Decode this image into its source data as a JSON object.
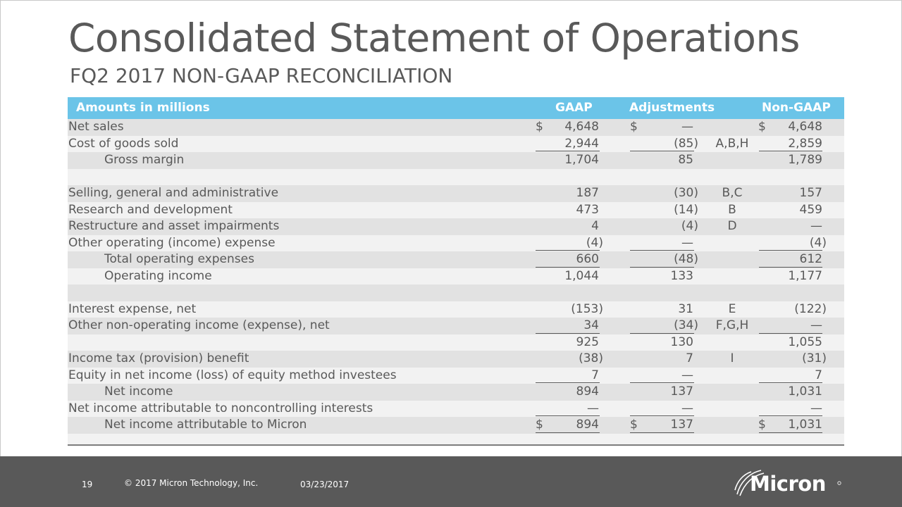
{
  "title": "Consolidated Statement of Operations",
  "subtitle": "FQ2 2017 NON-GAAP RECONCILIATION",
  "table": {
    "headers": {
      "label": "Amounts in millions",
      "gaap": "GAAP",
      "adjustments": "Adjustments",
      "nongaap": "Non-GAAP"
    },
    "rows": [
      {
        "label": "Net sales",
        "gaap_sym": "$",
        "gaap": "4,648",
        "adj_sym": "$",
        "adj": "—",
        "note": "",
        "ng_sym": "$",
        "ng": "4,648"
      },
      {
        "label": "Cost of goods sold",
        "gaap": "2,944",
        "adj": "(85)",
        "note": "A,B,H",
        "ng": "2,859"
      },
      {
        "label": "Gross margin",
        "gaap": "1,704",
        "adj": "85",
        "note": "",
        "ng": "1,789"
      },
      {
        "label": ""
      },
      {
        "label": "Selling, general and administrative",
        "gaap": "187",
        "adj": "(30)",
        "note": "B,C",
        "ng": "157"
      },
      {
        "label": "Research and development",
        "gaap": "473",
        "adj": "(14)",
        "note": "B",
        "ng": "459"
      },
      {
        "label": "Restructure and asset impairments",
        "gaap": "4",
        "adj": "(4)",
        "note": "D",
        "ng": "—"
      },
      {
        "label": "Other operating (income) expense",
        "gaap": "(4)",
        "adj": "—",
        "note": "",
        "ng": "(4)"
      },
      {
        "label": "Total operating expenses",
        "gaap": "660",
        "adj": "(48)",
        "note": "",
        "ng": "612"
      },
      {
        "label": "Operating income",
        "gaap": "1,044",
        "adj": "133",
        "note": "",
        "ng": "1,177"
      },
      {
        "label": ""
      },
      {
        "label": "Interest expense, net",
        "gaap": "(153)",
        "adj": "31",
        "note": "E",
        "ng": "(122)"
      },
      {
        "label": "Other non-operating income (expense), net",
        "gaap": "34",
        "adj": "(34)",
        "note": "F,G,H",
        "ng": "—"
      },
      {
        "label": "",
        "gaap": "925",
        "adj": "130",
        "note": "",
        "ng": "1,055"
      },
      {
        "label": "Income tax (provision) benefit",
        "gaap": "(38)",
        "adj": "7",
        "note": "I",
        "ng": "(31)"
      },
      {
        "label": "Equity in net income (loss) of equity method investees",
        "gaap": "7",
        "adj": "—",
        "note": "",
        "ng": "7"
      },
      {
        "label": "Net income",
        "gaap": "894",
        "adj": "137",
        "note": "",
        "ng": "1,031"
      },
      {
        "label": "Net income attributable to noncontrolling interests",
        "gaap": "—",
        "adj": "—",
        "note": "",
        "ng": "—"
      },
      {
        "label": "Net income attributable to Micron",
        "gaap_sym": "$",
        "gaap": "894",
        "adj_sym": "$",
        "adj": "137",
        "note": "",
        "ng_sym": "$",
        "ng": "1,031"
      }
    ]
  },
  "footer": {
    "page": "19",
    "copyright": "© 2017 Micron Technology, Inc.",
    "date": "03/23/2017",
    "logo_text": "Micron"
  },
  "colors": {
    "header_bg": "#6bc4e8",
    "footer_bg": "#595959",
    "text": "#595959",
    "row_dark": "#e2e2e2",
    "row_light": "#f2f2f2"
  }
}
